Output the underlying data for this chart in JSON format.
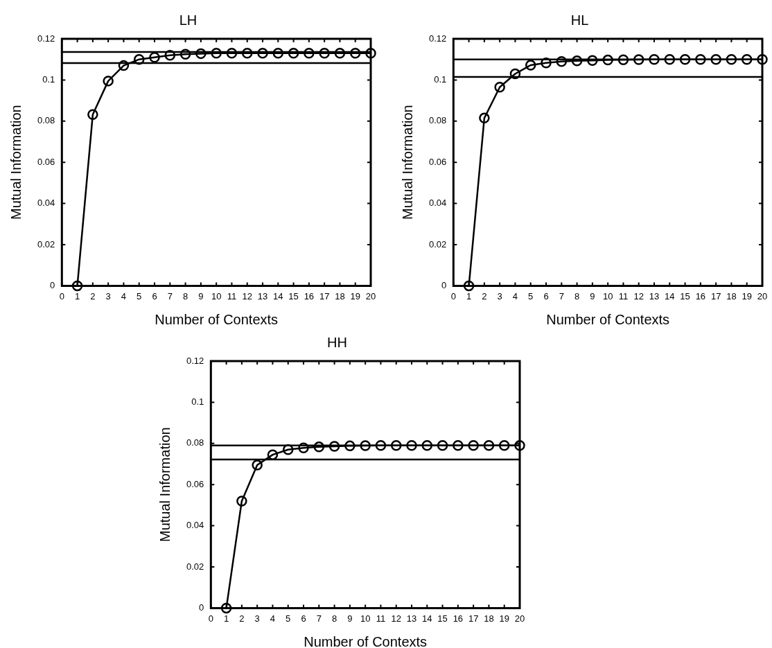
{
  "chart_data": [
    {
      "type": "line",
      "title": "LH",
      "xlabel": "Number of Contexts",
      "ylabel": "Mutual Information",
      "x": [
        1,
        2,
        3,
        4,
        5,
        6,
        7,
        8,
        9,
        10,
        11,
        12,
        13,
        14,
        15,
        16,
        17,
        18,
        19,
        20
      ],
      "series": [
        {
          "color": "#000000",
          "values": [
            0,
            0.0832,
            0.0995,
            0.107,
            0.11,
            0.111,
            0.112,
            0.1125,
            0.1128,
            0.113,
            0.113,
            0.113,
            0.113,
            0.113,
            0.113,
            0.113,
            0.113,
            0.113,
            0.113,
            0.113
          ]
        }
      ],
      "xlim": [
        0,
        20
      ],
      "xticks": [
        0,
        1,
        2,
        3,
        4,
        5,
        6,
        7,
        8,
        9,
        10,
        11,
        12,
        13,
        14,
        15,
        16,
        17,
        18,
        19,
        20
      ],
      "ylim": [
        0,
        0.12
      ],
      "yticks": [
        0,
        0.02,
        0.04,
        0.06,
        0.08,
        0.1,
        0.12
      ],
      "marker": "circle",
      "line_style": "solid",
      "grid": false,
      "legend": false,
      "ref_lines": [
        {
          "axis": "y",
          "value": 0.1136,
          "color": "#000000"
        },
        {
          "axis": "y",
          "value": 0.1082,
          "color": "#000000"
        }
      ]
    },
    {
      "type": "line",
      "title": "HL",
      "xlabel": "Number of Contexts",
      "ylabel": "Mutual Information",
      "x": [
        1,
        2,
        3,
        4,
        5,
        6,
        7,
        8,
        9,
        10,
        11,
        12,
        13,
        14,
        15,
        16,
        17,
        18,
        19,
        20
      ],
      "series": [
        {
          "color": "#000000",
          "values": [
            0,
            0.0815,
            0.0965,
            0.103,
            0.1072,
            0.1083,
            0.109,
            0.1093,
            0.1095,
            0.1097,
            0.1098,
            0.1099,
            0.11,
            0.11,
            0.11,
            0.11,
            0.11,
            0.11,
            0.11,
            0.11
          ]
        }
      ],
      "xlim": [
        0,
        20
      ],
      "xticks": [
        0,
        1,
        2,
        3,
        4,
        5,
        6,
        7,
        8,
        9,
        10,
        11,
        12,
        13,
        14,
        15,
        16,
        17,
        18,
        19,
        20
      ],
      "ylim": [
        0,
        0.12
      ],
      "yticks": [
        0,
        0.02,
        0.04,
        0.06,
        0.08,
        0.1,
        0.12
      ],
      "marker": "circle",
      "line_style": "solid",
      "grid": false,
      "legend": false,
      "ref_lines": [
        {
          "axis": "y",
          "value": 0.11,
          "color": "#000000"
        },
        {
          "axis": "y",
          "value": 0.1015,
          "color": "#000000"
        }
      ]
    },
    {
      "type": "line",
      "title": "HH",
      "xlabel": "Number of Contexts",
      "ylabel": "Mutual Information",
      "x": [
        1,
        2,
        3,
        4,
        5,
        6,
        7,
        8,
        9,
        10,
        11,
        12,
        13,
        14,
        15,
        16,
        17,
        18,
        19,
        20
      ],
      "series": [
        {
          "color": "#000000",
          "values": [
            0,
            0.052,
            0.0695,
            0.0745,
            0.077,
            0.0778,
            0.0783,
            0.0786,
            0.0788,
            0.0789,
            0.079,
            0.079,
            0.079,
            0.079,
            0.079,
            0.079,
            0.079,
            0.079,
            0.079,
            0.079
          ]
        }
      ],
      "xlim": [
        0,
        20
      ],
      "xticks": [
        0,
        1,
        2,
        3,
        4,
        5,
        6,
        7,
        8,
        9,
        10,
        11,
        12,
        13,
        14,
        15,
        16,
        17,
        18,
        19,
        20
      ],
      "ylim": [
        0,
        0.12
      ],
      "yticks": [
        0,
        0.02,
        0.04,
        0.06,
        0.08,
        0.1,
        0.12
      ],
      "marker": "circle",
      "line_style": "solid",
      "grid": false,
      "legend": false,
      "ref_lines": [
        {
          "axis": "y",
          "value": 0.079,
          "color": "#000000"
        },
        {
          "axis": "y",
          "value": 0.0722,
          "color": "#000000"
        }
      ]
    }
  ]
}
